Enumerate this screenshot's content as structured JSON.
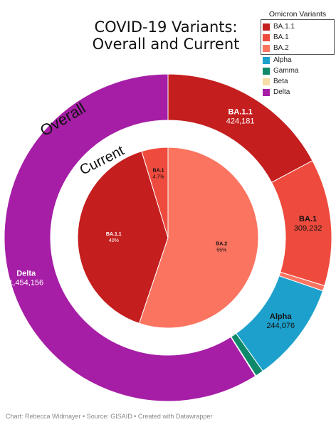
{
  "title_line1": "COVID-19 Variants:",
  "title_line2": "Overall and Current",
  "footer": "Chart: Rebecca Widmayer • Source: GISAID • Created with Datawrapper",
  "colors": {
    "BA.1.1": "#c41e1e",
    "BA.1": "#ee4b3e",
    "BA.2": "#fa7460",
    "Alpha": "#1da1cc",
    "Gamma": "#0e8a6b",
    "Beta": "#f6dca5",
    "Delta": "#a61ea6"
  },
  "legend": {
    "title": "Omicron Variants",
    "boxed": [
      "BA.1.1",
      "BA.1",
      "BA.2"
    ],
    "other": [
      "Alpha",
      "Gamma",
      "Beta",
      "Delta"
    ]
  },
  "chart_data": [
    {
      "type": "pie",
      "ring": "outer",
      "title": "Overall",
      "slices": [
        {
          "label": "BA.1.1",
          "value": 424181,
          "display": "424,181"
        },
        {
          "label": "BA.1",
          "value": 309232,
          "display": "309,232"
        },
        {
          "label": "BA.2",
          "value": 13000,
          "display": ""
        },
        {
          "label": "Alpha",
          "value": 244076,
          "display": "244,076"
        },
        {
          "label": "Gamma",
          "value": 20000,
          "display": ""
        },
        {
          "label": "Beta",
          "value": 1500,
          "display": ""
        },
        {
          "label": "Delta",
          "value": 1454156,
          "display": "1,454,156"
        }
      ]
    },
    {
      "type": "pie",
      "ring": "inner",
      "title": "Current",
      "slices": [
        {
          "label": "BA.2",
          "value": 55,
          "display": "55%"
        },
        {
          "label": "BA.1.1",
          "value": 40,
          "display": "40%"
        },
        {
          "label": "BA.1",
          "value": 4.7,
          "display": "4.7%"
        }
      ]
    }
  ]
}
